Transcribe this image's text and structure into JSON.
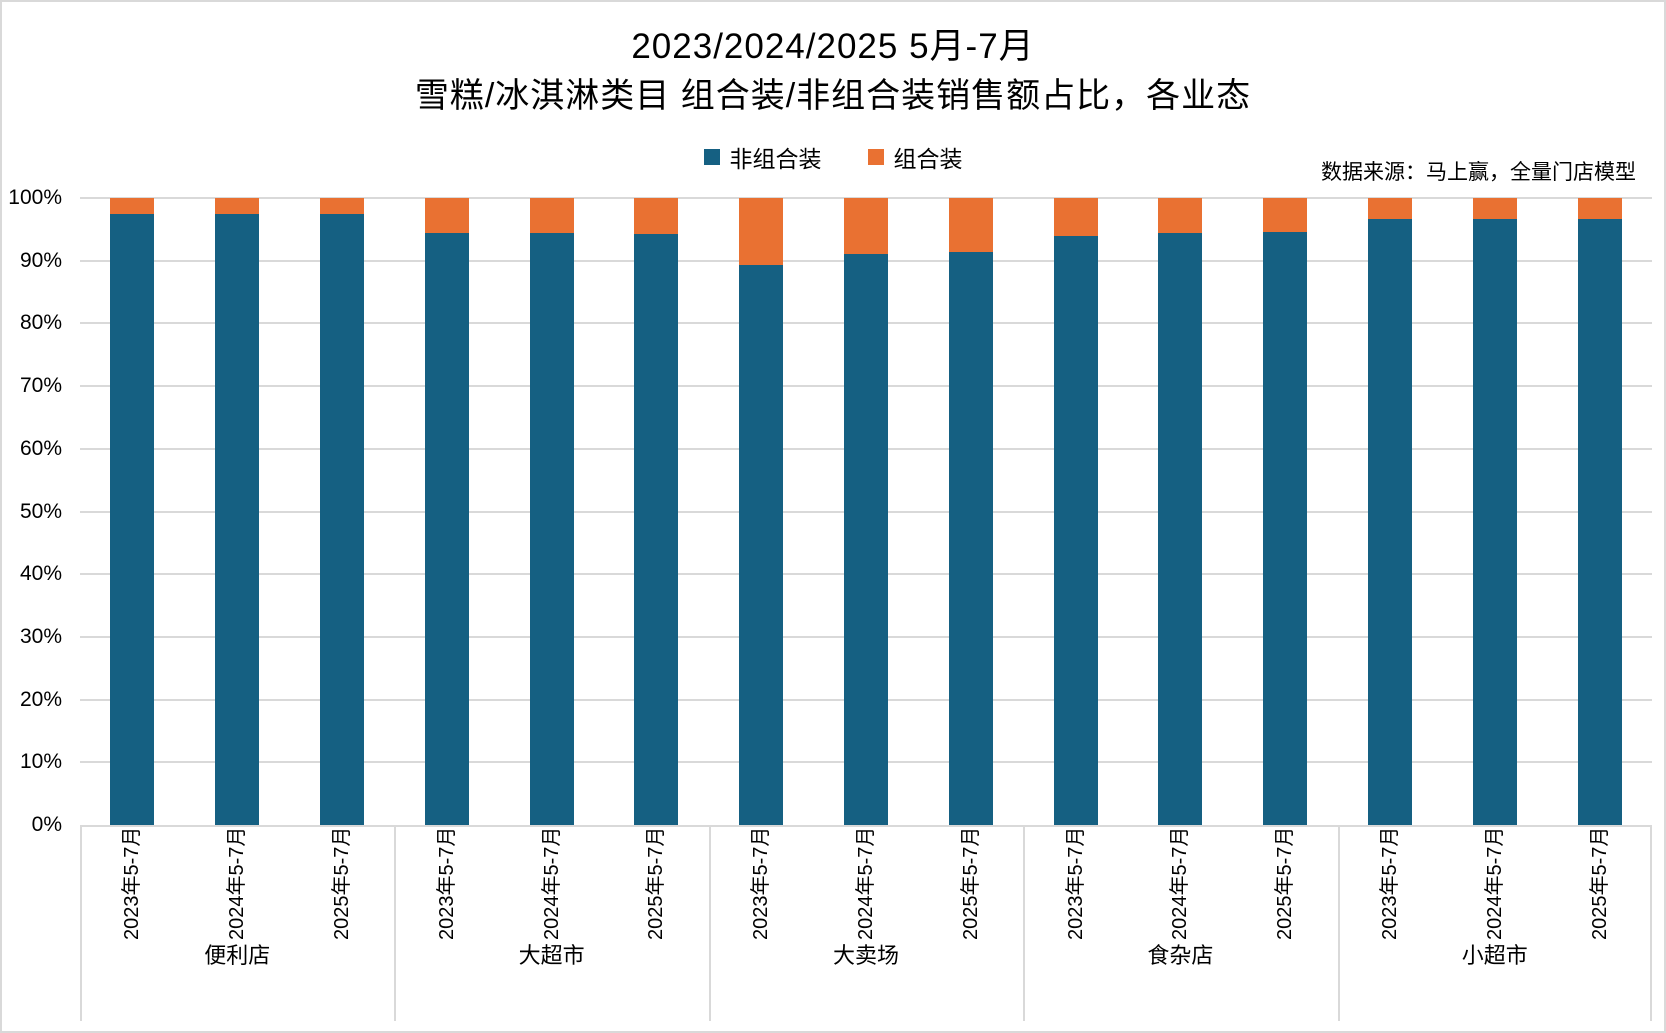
{
  "chart_data": {
    "type": "bar",
    "variant": "stacked-100-percent-column",
    "title": "2023/2024/2025 5月-7月",
    "subtitle": "雪糕/冰淇淋类目 组合装/非组合装销售额占比，各业态",
    "source_note": "数据来源：马上赢，全量门店模型",
    "legend_position": "top-center",
    "grid": true,
    "ylim": [
      0,
      100
    ],
    "y_ticks": [
      "0%",
      "10%",
      "20%",
      "30%",
      "40%",
      "50%",
      "60%",
      "70%",
      "80%",
      "90%",
      "100%"
    ],
    "group_labels": [
      "便利店",
      "大超市",
      "大卖场",
      "食杂店",
      "小超市"
    ],
    "year_labels": [
      "2023年5-7月",
      "2024年5-7月",
      "2025年5-7月"
    ],
    "series": [
      {
        "name": "非组合装",
        "color": "#156082",
        "values": [
          97.5,
          97.5,
          97.4,
          94.4,
          94.4,
          94.2,
          89.3,
          91.0,
          91.4,
          94.0,
          94.4,
          94.6,
          96.7,
          96.7,
          96.7
        ]
      },
      {
        "name": "组合装",
        "color": "#E97132",
        "values": [
          2.5,
          2.5,
          2.6,
          5.6,
          5.6,
          5.8,
          10.7,
          9.0,
          8.6,
          6.0,
          5.6,
          5.4,
          3.3,
          3.3,
          3.3
        ]
      }
    ]
  },
  "colors": {
    "gridline": "#d9d9d9",
    "axis_text": "#000000",
    "background": "#ffffff"
  }
}
